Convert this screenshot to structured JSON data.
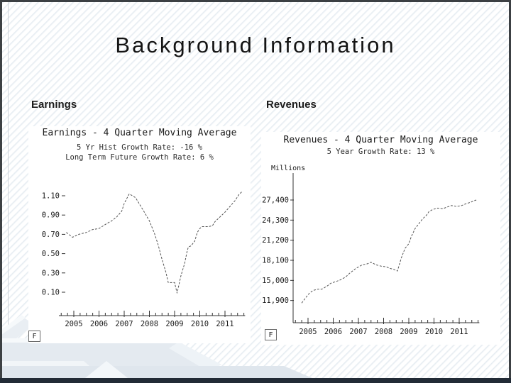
{
  "slide": {
    "title": "Background Information",
    "left_heading": "Earnings",
    "right_heading": "Revenues"
  },
  "colors": {
    "frame": "#3c4043",
    "bottom_bar": "#222b36",
    "stripe": "#e3eaf0",
    "text": "#141414",
    "chart_line": "#555555",
    "axis": "#333333"
  },
  "chart_data": [
    {
      "type": "line",
      "id": "earnings",
      "title": "Earnings - 4 Quarter Moving Average",
      "subtitle1": "5 Yr Hist Growth Rate: -16 %",
      "subtitle2": "Long Term Future Growth Rate: 6 %",
      "legend_marker": "F",
      "line_style": "dashed",
      "grid": false,
      "legend_position": "bottom-left",
      "xlim": [
        2004.5,
        2011.85
      ],
      "ylim": [
        0.0,
        1.25
      ],
      "x_tick_labels": [
        "2005",
        "2006",
        "2007",
        "2008",
        "2009",
        "2010",
        "2011"
      ],
      "x_tick_values": [
        2005,
        2006,
        2007,
        2008,
        2009,
        2010,
        2011
      ],
      "y_tick_labels": [
        "1.10",
        "0.90",
        "0.70",
        "0.50",
        "0.30",
        "0.10"
      ],
      "y_tick_values": [
        1.1,
        0.9,
        0.7,
        0.5,
        0.3,
        0.1
      ],
      "points": [
        [
          2004.7,
          0.72
        ],
        [
          2004.95,
          0.67
        ],
        [
          2005.2,
          0.7
        ],
        [
          2005.5,
          0.72
        ],
        [
          2005.75,
          0.75
        ],
        [
          2006.0,
          0.76
        ],
        [
          2006.3,
          0.81
        ],
        [
          2006.5,
          0.84
        ],
        [
          2006.7,
          0.88
        ],
        [
          2006.9,
          0.94
        ],
        [
          2007.0,
          1.02
        ],
        [
          2007.2,
          1.12
        ],
        [
          2007.45,
          1.08
        ],
        [
          2007.8,
          0.93
        ],
        [
          2008.0,
          0.84
        ],
        [
          2008.2,
          0.71
        ],
        [
          2008.35,
          0.59
        ],
        [
          2008.5,
          0.44
        ],
        [
          2008.65,
          0.31
        ],
        [
          2008.75,
          0.2
        ],
        [
          2009.0,
          0.2
        ],
        [
          2009.1,
          0.09
        ],
        [
          2009.25,
          0.27
        ],
        [
          2009.4,
          0.4
        ],
        [
          2009.5,
          0.53
        ],
        [
          2009.55,
          0.57
        ],
        [
          2009.65,
          0.58
        ],
        [
          2009.8,
          0.63
        ],
        [
          2009.9,
          0.72
        ],
        [
          2010.0,
          0.76
        ],
        [
          2010.1,
          0.78
        ],
        [
          2010.35,
          0.78
        ],
        [
          2010.5,
          0.79
        ],
        [
          2010.6,
          0.83
        ],
        [
          2010.8,
          0.88
        ],
        [
          2011.0,
          0.93
        ],
        [
          2011.2,
          0.99
        ],
        [
          2011.4,
          1.05
        ],
        [
          2011.55,
          1.11
        ],
        [
          2011.7,
          1.15
        ]
      ]
    },
    {
      "type": "line",
      "id": "revenues",
      "title": "Revenues - 4 Quarter Moving Average",
      "subtitle1": "5 Year Growth Rate: 13 %",
      "ylabel": "Millions",
      "legend_marker": "F",
      "line_style": "dashed",
      "grid": false,
      "legend_position": "bottom-left",
      "xlim": [
        2004.5,
        2011.85
      ],
      "ylim": [
        10500,
        28500
      ],
      "x_tick_labels": [
        "2005",
        "2006",
        "2007",
        "2008",
        "2009",
        "2010",
        "2011"
      ],
      "x_tick_values": [
        2005,
        2006,
        2007,
        2008,
        2009,
        2010,
        2011
      ],
      "y_tick_labels": [
        "27,400",
        "24,300",
        "21,200",
        "18,100",
        "15,000",
        "11,900"
      ],
      "y_tick_values": [
        27400,
        24300,
        21200,
        18100,
        15000,
        11900
      ],
      "points": [
        [
          2004.75,
          11500
        ],
        [
          2004.9,
          12300
        ],
        [
          2005.05,
          13000
        ],
        [
          2005.2,
          13450
        ],
        [
          2005.4,
          13650
        ],
        [
          2005.55,
          13650
        ],
        [
          2005.75,
          14100
        ],
        [
          2005.9,
          14550
        ],
        [
          2006.1,
          14800
        ],
        [
          2006.3,
          15100
        ],
        [
          2006.5,
          15550
        ],
        [
          2006.65,
          16100
        ],
        [
          2006.9,
          16850
        ],
        [
          2007.15,
          17400
        ],
        [
          2007.35,
          17550
        ],
        [
          2007.5,
          17800
        ],
        [
          2007.7,
          17400
        ],
        [
          2007.9,
          17200
        ],
        [
          2008.1,
          17100
        ],
        [
          2008.25,
          16850
        ],
        [
          2008.4,
          16700
        ],
        [
          2008.55,
          16450
        ],
        [
          2008.7,
          18450
        ],
        [
          2008.85,
          19950
        ],
        [
          2009.0,
          20650
        ],
        [
          2009.1,
          21750
        ],
        [
          2009.25,
          23000
        ],
        [
          2009.4,
          23750
        ],
        [
          2009.55,
          24500
        ],
        [
          2009.7,
          25050
        ],
        [
          2009.8,
          25600
        ],
        [
          2009.95,
          25950
        ],
        [
          2010.15,
          26150
        ],
        [
          2010.35,
          26050
        ],
        [
          2010.5,
          26300
        ],
        [
          2010.7,
          26550
        ],
        [
          2010.9,
          26400
        ],
        [
          2011.1,
          26550
        ],
        [
          2011.25,
          26800
        ],
        [
          2011.45,
          27050
        ],
        [
          2011.6,
          27300
        ],
        [
          2011.68,
          27400
        ]
      ]
    }
  ]
}
